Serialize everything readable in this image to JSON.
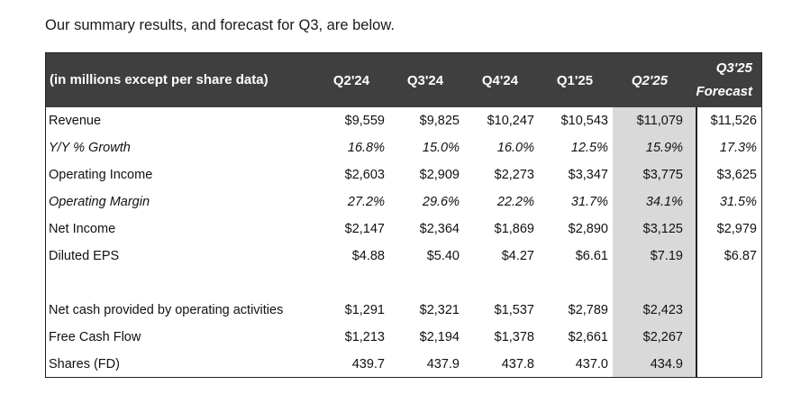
{
  "intro": "Our summary results, and forecast for Q3, are below.",
  "table": {
    "header_label": "(in millions except per share data)",
    "columns": [
      "Q2'24",
      "Q3'24",
      "Q4'24",
      "Q1'25",
      "Q2'25"
    ],
    "forecast_line1": "Q3'25",
    "forecast_line2": "Forecast",
    "rows": [
      {
        "label": "Revenue",
        "values": [
          "$9,559",
          "$9,825",
          "$10,247",
          "$10,543",
          "$11,079",
          "$11,526"
        ]
      },
      {
        "label": "Y/Y % Growth",
        "values": [
          "16.8%",
          "15.0%",
          "16.0%",
          "12.5%",
          "15.9%",
          "17.3%"
        ]
      },
      {
        "label": "Operating Income",
        "values": [
          "$2,603",
          "$2,909",
          "$2,273",
          "$3,347",
          "$3,775",
          "$3,625"
        ]
      },
      {
        "label": "Operating Margin",
        "values": [
          "27.2%",
          "29.6%",
          "22.2%",
          "31.7%",
          "34.1%",
          "31.5%"
        ]
      },
      {
        "label": "Net Income",
        "values": [
          "$2,147",
          "$2,364",
          "$1,869",
          "$2,890",
          "$3,125",
          "$2,979"
        ]
      },
      {
        "label": "Diluted EPS",
        "values": [
          "$4.88",
          "$5.40",
          "$4.27",
          "$6.61",
          "$7.19",
          "$6.87"
        ]
      },
      {
        "label": "Net cash provided by operating activities",
        "values": [
          "$1,291",
          "$2,321",
          "$1,537",
          "$2,789",
          "$2,423",
          ""
        ]
      },
      {
        "label": "Free Cash Flow",
        "values": [
          "$1,213",
          "$2,194",
          "$1,378",
          "$2,661",
          "$2,267",
          ""
        ]
      },
      {
        "label": "Shares (FD)",
        "values": [
          "439.7",
          "437.9",
          "437.8",
          "437.0",
          "434.9",
          ""
        ]
      }
    ]
  }
}
